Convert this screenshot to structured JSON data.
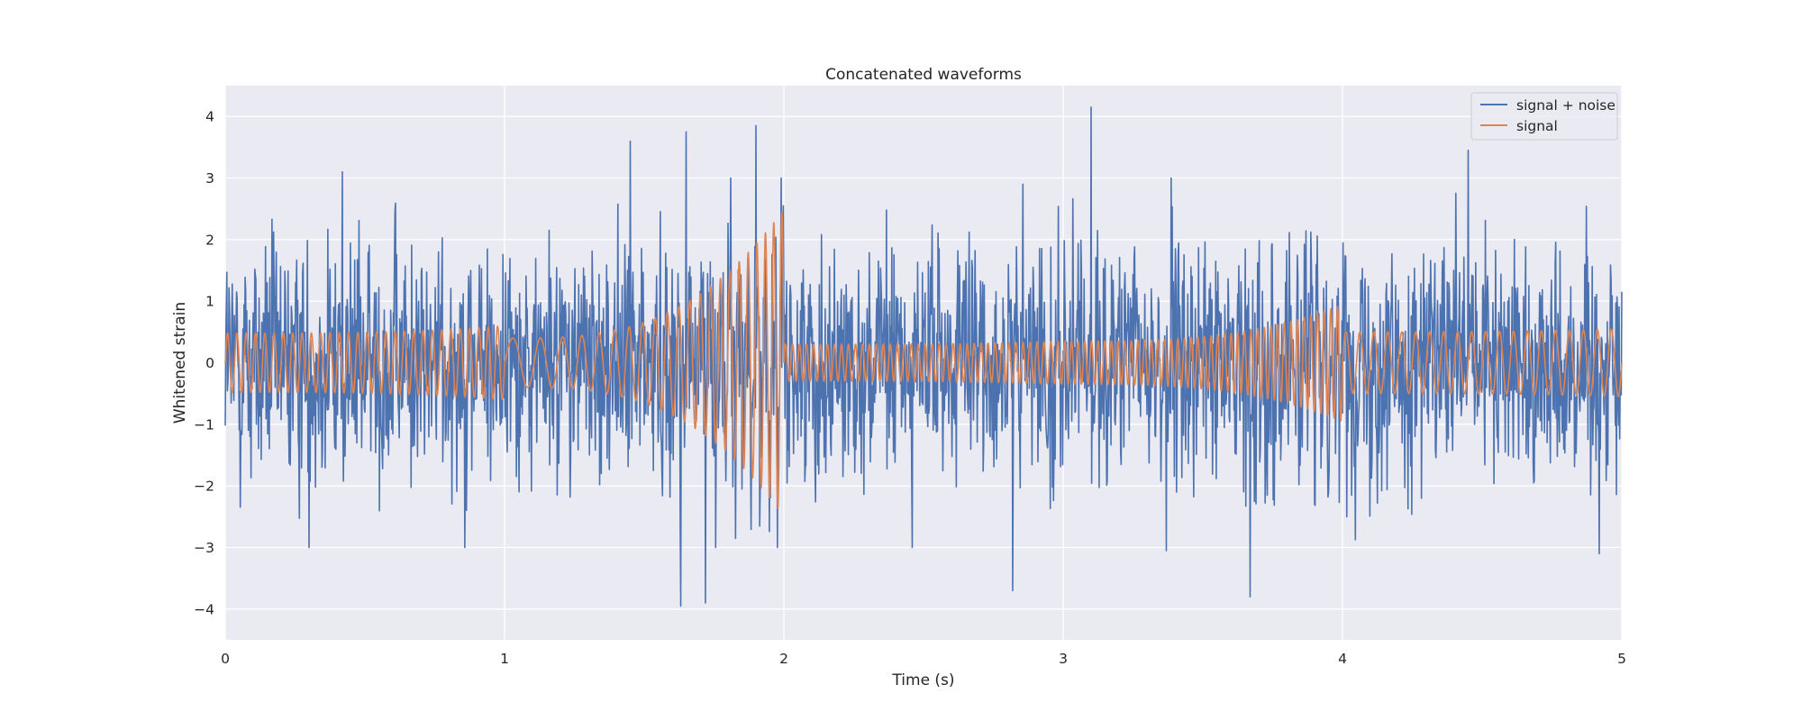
{
  "chart_data": {
    "type": "line",
    "title": "Concatenated waveforms",
    "xlabel": "Time (s)",
    "ylabel": "Whitened strain",
    "xlim": [
      0,
      5
    ],
    "ylim": [
      -4.5,
      4.5
    ],
    "xticks": [
      0,
      1,
      2,
      3,
      4,
      5
    ],
    "xtick_labels": [
      "0",
      "1",
      "2",
      "3",
      "4",
      "5"
    ],
    "yticks": [
      -4,
      -3,
      -2,
      -1,
      0,
      1,
      2,
      3,
      4
    ],
    "ytick_labels": [
      "−4",
      "−3",
      "−2",
      "−1",
      "0",
      "1",
      "2",
      "3",
      "4"
    ],
    "grid": true,
    "legend_position": "top-right",
    "colors": {
      "background": "#eaeaf2",
      "grid": "#ffffff",
      "signal_noise": "#4c72b0",
      "signal": "#dd8452"
    },
    "series": [
      {
        "name": "signal + noise",
        "color": "#4c72b0",
        "x_range": [
          0,
          5
        ],
        "noise_sigma": 0.95,
        "notable_extrema": [
          {
            "x": 0.42,
            "y": 3.1
          },
          {
            "x": 0.3,
            "y": -3.0
          },
          {
            "x": 1.45,
            "y": 3.6
          },
          {
            "x": 1.65,
            "y": 3.75
          },
          {
            "x": 1.63,
            "y": -3.95
          },
          {
            "x": 1.72,
            "y": -3.9
          },
          {
            "x": 1.9,
            "y": 3.85
          },
          {
            "x": 2.82,
            "y": -3.7
          },
          {
            "x": 3.1,
            "y": 4.15
          },
          {
            "x": 3.37,
            "y": -3.05
          },
          {
            "x": 3.67,
            "y": -3.8
          },
          {
            "x": 4.45,
            "y": 3.45
          },
          {
            "x": 4.92,
            "y": -3.1
          }
        ]
      },
      {
        "name": "signal",
        "color": "#dd8452",
        "segments": [
          {
            "t_start": 0.0,
            "t_end": 1.0,
            "frequency_start_hz": 30,
            "frequency_end_hz": 30,
            "amplitude_start": 0.48,
            "amplitude_end": 0.6
          },
          {
            "t_start": 1.0,
            "t_end": 2.0,
            "frequency_start_hz": 8,
            "frequency_end_hz": 35,
            "amplitude_start": 0.4,
            "amplitude_end": 2.5
          },
          {
            "t_start": 2.0,
            "t_end": 3.0,
            "frequency_start_hz": 40,
            "frequency_end_hz": 40,
            "amplitude_start": 0.3,
            "amplitude_end": 0.35
          },
          {
            "t_start": 3.0,
            "t_end": 4.0,
            "frequency_start_hz": 42,
            "frequency_end_hz": 42,
            "amplitude_start": 0.35,
            "amplitude_end": 0.95
          },
          {
            "t_start": 4.0,
            "t_end": 5.0,
            "frequency_start_hz": 20,
            "frequency_end_hz": 20,
            "amplitude_start": 0.5,
            "amplitude_end": 0.55
          }
        ]
      }
    ]
  }
}
